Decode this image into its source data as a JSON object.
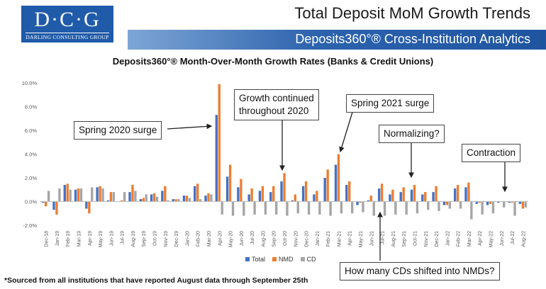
{
  "logo": {
    "letters": "D·C·G",
    "name": "DARLING CONSULTING GROUP"
  },
  "header": {
    "title": "Total Deposit MoM Growth Trends",
    "subtitle": "Deposits360°® Cross-Institution Analytics"
  },
  "footnote": "*Sourced from all institutions that have reported August data through September 25th",
  "annotations": {
    "spring2020": "Spring 2020 surge",
    "growth2020_line1": "Growth continued",
    "growth2020_line2": "throughout 2020",
    "spring2021": "Spring 2021 surge",
    "normalizing": "Normalizing?",
    "contraction": "Contraction",
    "cds": "How many CDs shifted into NMDs?"
  },
  "colors": {
    "Total": "#4472c4",
    "NMD": "#ed7d31",
    "CD": "#a5a5a5",
    "axis": "#bfbfbf",
    "grid": "#d9d9d9",
    "text": "#595959"
  },
  "chart_data": {
    "type": "bar",
    "title": "Deposits360°® Month-Over-Month Growth Rates (Banks & Credit Unions)",
    "xlabel": "",
    "ylabel": "",
    "ylim": [
      -2,
      10
    ],
    "yticks": [
      "-2.0%",
      "0.0%",
      "2.0%",
      "4.0%",
      "6.0%",
      "8.0%",
      "10.0%"
    ],
    "grid": false,
    "legend": "bottom",
    "categories": [
      "Dec-18",
      "Jan-19",
      "Feb-19",
      "Mar-19",
      "Apr-19",
      "May-19",
      "Jun-19",
      "Jul-19",
      "Aug-19",
      "Sep-19",
      "Oct-19",
      "Nov-19",
      "Dec-19",
      "Jan-20",
      "Feb-20",
      "Mar-20",
      "Apr-20",
      "May-20",
      "Jun-20",
      "Jul-20",
      "Aug-20",
      "Sep-20",
      "Oct-20",
      "Nov-20",
      "Dec-20",
      "Jan-21",
      "Feb-21",
      "Mar-21",
      "Apr-21",
      "May-21",
      "Jun-21",
      "Jul-21",
      "Aug-21",
      "Sep-21",
      "Oct-21",
      "Nov-21",
      "Dec-21",
      "Jan-22",
      "Feb-22",
      "Mar-22",
      "Apr-22",
      "May-22",
      "Jun-22",
      "Jul-22",
      "Aug-22"
    ],
    "xtick_labels": [
      "Dec-18",
      "Jan-19",
      "Feb-19",
      "Mar-19",
      "Apr-19",
      "May-19",
      "Jun-19",
      "Jul-19",
      "Aug-19",
      "Sep-19",
      "Oct-19",
      "Nov-19",
      "Dec-19",
      "Jan-20",
      "Feb-20",
      "Mar-20",
      "Apr-20",
      "May-20",
      "Jun-20",
      "Jul-20",
      "Aug-20",
      "Sep-20",
      "Oct-20",
      "Nov-20",
      "Dec-20",
      "Jan-21",
      "Feb-21",
      "Mar-21",
      "Apr-21",
      "May-21",
      "Jun-21",
      "Jul-21",
      "Aug-21",
      "Sep-21",
      "Oct-21",
      "Nov-21",
      "Dec-21",
      "Jan-22",
      "Feb-22",
      "Mar-22",
      "Apr-22",
      "May-22",
      "Jun-22",
      "Jul-22",
      "Aug-22"
    ],
    "series": [
      {
        "name": "Total",
        "values": [
          -0.1,
          -0.7,
          1.4,
          1.0,
          -0.6,
          1.2,
          0.1,
          0.0,
          0.8,
          0.2,
          0.6,
          0.9,
          0.2,
          0.5,
          1.3,
          0.5,
          7.3,
          2.1,
          1.2,
          0.6,
          0.9,
          0.8,
          1.7,
          0.1,
          1.3,
          0.6,
          2.0,
          3.1,
          1.4,
          -0.3,
          0.1,
          1.1,
          0.6,
          0.8,
          1.0,
          0.6,
          0.8,
          -0.3,
          1.1,
          1.2,
          -0.2,
          -0.3,
          -0.1,
          -0.1,
          -0.2
        ]
      },
      {
        "name": "NMD",
        "values": [
          -0.4,
          -1.1,
          1.5,
          1.1,
          -1.0,
          1.3,
          0.8,
          0.1,
          1.4,
          0.3,
          0.7,
          1.3,
          0.2,
          0.5,
          1.5,
          0.7,
          9.9,
          3.1,
          1.9,
          1.1,
          1.3,
          1.3,
          2.4,
          0.6,
          1.7,
          0.9,
          2.7,
          4.0,
          1.7,
          -0.1,
          0.5,
          1.5,
          1.0,
          1.2,
          1.4,
          0.8,
          1.3,
          -0.3,
          1.4,
          1.6,
          -0.1,
          -0.2,
          0.0,
          -0.1,
          -0.6
        ]
      },
      {
        "name": "CD",
        "values": [
          0.9,
          1.1,
          1.0,
          1.1,
          1.2,
          1.1,
          0.8,
          0.8,
          0.9,
          0.6,
          0.4,
          0.1,
          0.2,
          0.3,
          0.2,
          0.6,
          -1.1,
          -1.2,
          -1.2,
          -1.1,
          -1.1,
          -1.1,
          -1.2,
          -1.0,
          -1.1,
          -1.1,
          -1.2,
          -1.0,
          -1.0,
          -0.9,
          -1.2,
          -1.2,
          -1.1,
          -1.1,
          -1.0,
          -0.7,
          -0.8,
          -0.6,
          -0.6,
          -1.5,
          -1.1,
          -1.0,
          -0.5,
          -1.2,
          -0.5
        ]
      }
    ]
  }
}
